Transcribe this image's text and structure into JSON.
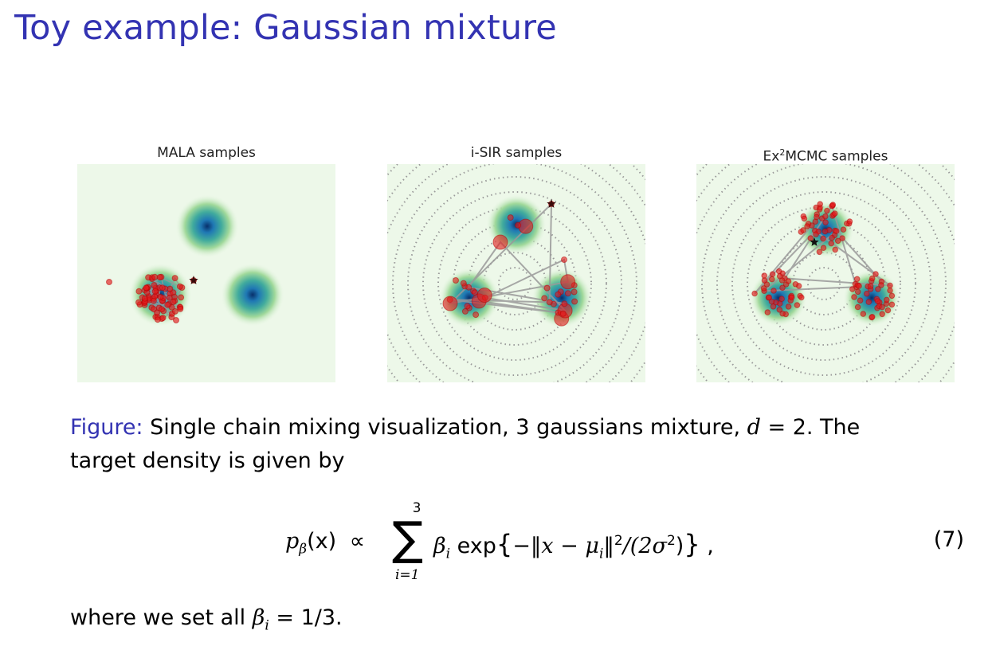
{
  "slide": {
    "title": "Toy example: Gaussian mixture"
  },
  "panels": [
    {
      "title_pre": "MALA samples",
      "title_sup": "",
      "title_post": ""
    },
    {
      "title_pre": "i-SIR samples",
      "title_sup": "",
      "title_post": ""
    },
    {
      "title_pre": "Ex",
      "title_sup": "2",
      "title_post": "MCMC samples"
    }
  ],
  "caption": {
    "label": "Figure:",
    "text_1": " Single chain mixing visualization, 3 gaussians mixture, ",
    "d_var": "d",
    "text_2": " = 2. The target density is given by"
  },
  "equation": {
    "lhs": "p",
    "lhs_sub": "β",
    "lhs_arg": "(x)",
    "propto": "∝",
    "sum_top": "3",
    "sum_symbol": "∑",
    "sum_bottom": "i=1",
    "body_beta": "β",
    "body_sub": "i",
    "body_exp": " exp",
    "body_open": "{",
    "body_norm": "−‖x − μ",
    "body_norm_sub": "i",
    "body_norm_close": "‖",
    "body_sq": "2",
    "body_div": "/(2σ",
    "body_sigma_sq": "2",
    "body_close_paren": ")",
    "body_close": "}",
    "trailing": " ,",
    "number": "(7)"
  },
  "footer": {
    "text": "where we set all ",
    "beta": "β",
    "beta_sub": "i",
    "rest": " = 1/3."
  },
  "colors": {
    "title": "#3333b2",
    "panel_bg": "#edf8e9",
    "sample": "#e41a1c",
    "path": "#999999",
    "star": "#3a0a0a"
  }
}
